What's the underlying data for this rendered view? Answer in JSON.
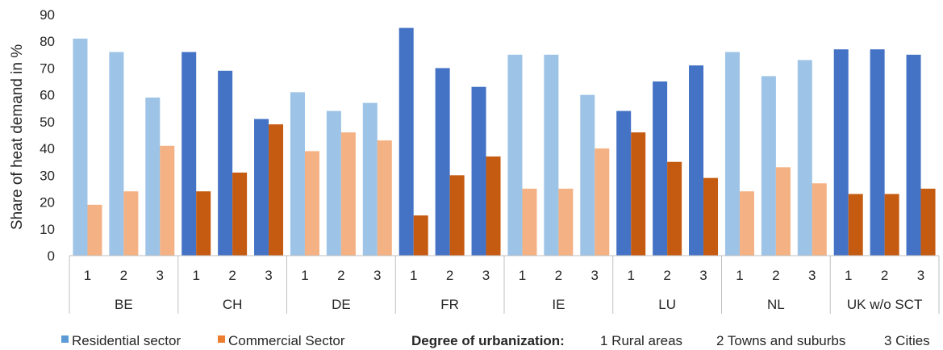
{
  "chart_data": {
    "type": "bar",
    "ylabel": "Share of heat demand in %",
    "ylim": [
      0,
      90
    ],
    "yticks": [
      0,
      10,
      20,
      30,
      40,
      50,
      60,
      70,
      80,
      90
    ],
    "grid": false,
    "groups": [
      "BE",
      "CH",
      "DE",
      "FR",
      "IE",
      "LU",
      "NL",
      "UK w/o SCT"
    ],
    "subcategories": [
      "1",
      "2",
      "3"
    ],
    "series": [
      {
        "name": "Residential sector",
        "legend_color": "#5B9BD5",
        "values": [
          [
            81,
            76,
            59
          ],
          [
            76,
            69,
            51
          ],
          [
            61,
            54,
            57
          ],
          [
            85,
            70,
            63
          ],
          [
            75,
            75,
            60
          ],
          [
            54,
            65,
            71
          ],
          [
            76,
            67,
            73
          ],
          [
            77,
            77,
            75
          ]
        ]
      },
      {
        "name": "Commercial Sector",
        "legend_color": "#ED7D31",
        "values": [
          [
            19,
            24,
            41
          ],
          [
            24,
            31,
            49
          ],
          [
            39,
            46,
            43
          ],
          [
            15,
            30,
            37
          ],
          [
            25,
            25,
            40
          ],
          [
            46,
            35,
            29
          ],
          [
            24,
            33,
            27
          ],
          [
            23,
            23,
            25
          ]
        ]
      }
    ],
    "group_shading": [
      "light",
      "dark",
      "light",
      "dark",
      "light",
      "dark",
      "light",
      "dark"
    ],
    "colors": {
      "residential_light": "#9DC3E6",
      "residential_dark": "#4472C4",
      "commercial_light": "#F4B183",
      "commercial_dark": "#C55A11",
      "axis": "#BFBFBF",
      "text": "#262626"
    },
    "legend": {
      "position": "bottom",
      "urbanization_title": "Degree of urbanization:",
      "urbanization_items": [
        "1 Rural areas",
        "2 Towns and suburbs",
        "3 Cities"
      ]
    }
  }
}
